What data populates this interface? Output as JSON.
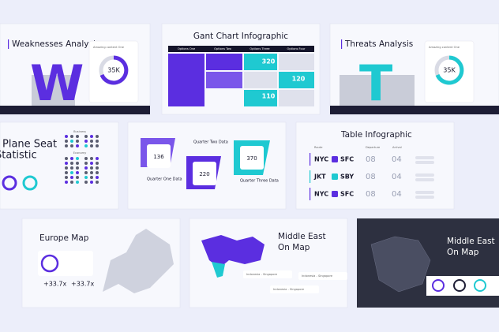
{
  "slides": {
    "weaknesses": {
      "title": "Weaknesses Analysis",
      "letter": "W",
      "card_label": "Amazing content One",
      "card_value": "35K"
    },
    "gantt": {
      "title": "Gant Chart Infographic",
      "headers": [
        "Options One",
        "Options Two",
        "Options Three",
        "Options Four"
      ],
      "values": [
        "320",
        "120",
        "110"
      ]
    },
    "threats": {
      "title": "Threats Analysis",
      "letter": "T",
      "card_label": "Amazing content One",
      "card_value": "35K"
    },
    "plane_seat": {
      "title_line1": "Plane Seat",
      "title_line2": "Statistic",
      "business": "Business",
      "economy": "Economy"
    },
    "quarters": {
      "labels": [
        "Quarter One Data",
        "Quarter Two Data",
        "Quarter Three Data"
      ],
      "values": [
        "136",
        "220",
        "370"
      ]
    },
    "table": {
      "title": "Table Infographic",
      "headers": [
        "Route",
        "Departure",
        "Arrival"
      ],
      "rows": [
        [
          "NYC",
          "SFC",
          "08",
          "04"
        ],
        [
          "JKT",
          "SBY",
          "08",
          "04"
        ],
        [
          "NYC",
          "SFC",
          "08",
          "04"
        ]
      ]
    },
    "europe": {
      "title": "Europe Map",
      "stats": [
        "+33.7x",
        "+33.7x"
      ]
    },
    "middle_east": {
      "title_line1": "Middle East",
      "title_line2": "On Map",
      "tags": [
        "Indonesia - Singapore",
        "Indonesia - Singapore",
        "Indonesia - Singapore"
      ]
    },
    "middle_east_dark": {
      "title_line1": "Middle East",
      "title_line2": "On Map"
    }
  }
}
